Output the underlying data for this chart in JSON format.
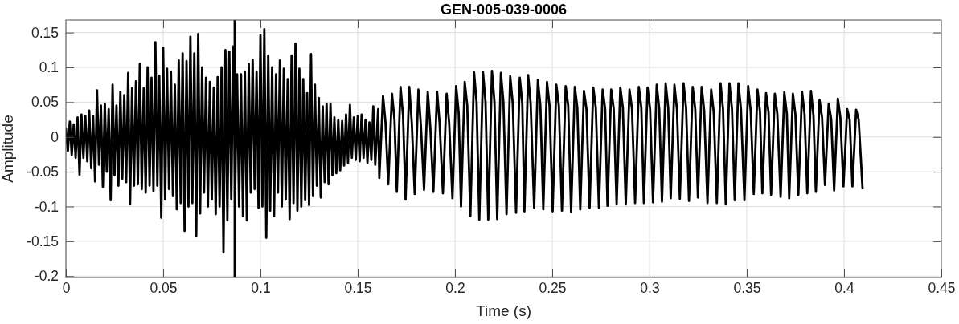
{
  "chart_data": {
    "type": "line",
    "title": "GEN-005-039-0006",
    "xlabel": "Time (s)",
    "ylabel": "Amplitude",
    "x": [
      0,
      0.001,
      0.002,
      0.003,
      0.004,
      0.005,
      0.006,
      0.007,
      0.008,
      0.009,
      0.01,
      0.011,
      0.012,
      0.013,
      0.014,
      0.015,
      0.016,
      0.017,
      0.018,
      0.019,
      0.02,
      0.021,
      0.022,
      0.023,
      0.024,
      0.025,
      0.026,
      0.027,
      0.028,
      0.029,
      0.03,
      0.031,
      0.032,
      0.033,
      0.034,
      0.035,
      0.036,
      0.037,
      0.038,
      0.039,
      0.04,
      0.041,
      0.042,
      0.043,
      0.044,
      0.045,
      0.046,
      0.047,
      0.048,
      0.049,
      0.05,
      0.051,
      0.052,
      0.053,
      0.054,
      0.055,
      0.056,
      0.057,
      0.058,
      0.059,
      0.06,
      0.061,
      0.062,
      0.063,
      0.064,
      0.065,
      0.066,
      0.067,
      0.068,
      0.069,
      0.07,
      0.071,
      0.072,
      0.073,
      0.074,
      0.075,
      0.076,
      0.077,
      0.078,
      0.079,
      0.08,
      0.081,
      0.082,
      0.083,
      0.084,
      0.085,
      0.086,
      0.087,
      0.088,
      0.089,
      0.09,
      0.091,
      0.092,
      0.093,
      0.094,
      0.095,
      0.096,
      0.097,
      0.098,
      0.099,
      0.1,
      0.101,
      0.102,
      0.103,
      0.104,
      0.105,
      0.106,
      0.107,
      0.108,
      0.109,
      0.11,
      0.111,
      0.112,
      0.113,
      0.114,
      0.115,
      0.116,
      0.117,
      0.118,
      0.119,
      0.12,
      0.121,
      0.122,
      0.123,
      0.124,
      0.125,
      0.126,
      0.127,
      0.128,
      0.129,
      0.13,
      0.131,
      0.132,
      0.133,
      0.134,
      0.135,
      0.136,
      0.137,
      0.138,
      0.139,
      0.14,
      0.141,
      0.142,
      0.143,
      0.144,
      0.145,
      0.146,
      0.147,
      0.148,
      0.149,
      0.15,
      0.151,
      0.152,
      0.153,
      0.154,
      0.155,
      0.156,
      0.157,
      0.158,
      0.159,
      0.1605,
      0.1611,
      0.163,
      0.1643,
      0.1657,
      0.1676,
      0.1689,
      0.1701,
      0.172,
      0.1733,
      0.1746,
      0.1765,
      0.1778,
      0.1793,
      0.1812,
      0.1825,
      0.1841,
      0.186,
      0.1873,
      0.1889,
      0.1908,
      0.1921,
      0.1938,
      0.1957,
      0.197,
      0.1987,
      0.2006,
      0.2019,
      0.2031,
      0.205,
      0.2063,
      0.2079,
      0.2098,
      0.2111,
      0.2125,
      0.2144,
      0.2157,
      0.2171,
      0.219,
      0.2203,
      0.2217,
      0.2236,
      0.2249,
      0.2265,
      0.2284,
      0.2297,
      0.2314,
      0.2333,
      0.2346,
      0.2357,
      0.2376,
      0.2389,
      0.2407,
      0.2426,
      0.2439,
      0.2454,
      0.2473,
      0.2486,
      0.2502,
      0.2521,
      0.2534,
      0.255,
      0.2569,
      0.2582,
      0.2597,
      0.2616,
      0.2629,
      0.2644,
      0.2663,
      0.2676,
      0.2692,
      0.2711,
      0.2724,
      0.274,
      0.2759,
      0.2772,
      0.2784,
      0.2803,
      0.2816,
      0.2831,
      0.285,
      0.2863,
      0.2878,
      0.2897,
      0.291,
      0.2926,
      0.2945,
      0.2958,
      0.2971,
      0.299,
      0.3003,
      0.3018,
      0.3037,
      0.305,
      0.3064,
      0.3083,
      0.3096,
      0.3109,
      0.3128,
      0.3141,
      0.3156,
      0.3175,
      0.3188,
      0.3203,
      0.3222,
      0.3235,
      0.3249,
      0.3268,
      0.3281,
      0.3298,
      0.3317,
      0.333,
      0.3346,
      0.3365,
      0.3378,
      0.3392,
      0.3411,
      0.3424,
      0.3438,
      0.3457,
      0.347,
      0.3488,
      0.3507,
      0.352,
      0.3536,
      0.3555,
      0.3568,
      0.358,
      0.3599,
      0.3612,
      0.3625,
      0.3644,
      0.3657,
      0.3674,
      0.3693,
      0.3706,
      0.3718,
      0.3737,
      0.375,
      0.3765,
      0.3784,
      0.3797,
      0.3811,
      0.383,
      0.3843,
      0.3855,
      0.3874,
      0.3887,
      0.3902,
      0.3921,
      0.3934,
      0.3949,
      0.3968,
      0.3981,
      0.3997,
      0.4016,
      0.4029,
      0.4043,
      0.4062,
      0.4075,
      0.4095
    ],
    "series": [
      {
        "color": "#000000",
        "values": [
          0.012,
          -0.02,
          0.022,
          -0.026,
          0.018,
          -0.03,
          0.028,
          -0.054,
          0.032,
          -0.03,
          0.03,
          -0.035,
          0.038,
          -0.045,
          0.03,
          -0.064,
          0.067,
          -0.04,
          0.045,
          -0.072,
          0.048,
          -0.05,
          0.04,
          -0.091,
          0.075,
          -0.055,
          0.045,
          -0.07,
          0.065,
          -0.06,
          0.06,
          -0.065,
          0.092,
          -0.097,
          0.07,
          -0.07,
          0.08,
          -0.068,
          0.105,
          -0.075,
          0.07,
          -0.08,
          0.1,
          -0.07,
          0.085,
          -0.078,
          0.136,
          -0.07,
          0.088,
          -0.116,
          0.128,
          -0.09,
          0.098,
          -0.075,
          0.094,
          -0.085,
          0.075,
          -0.104,
          0.11,
          -0.095,
          0.12,
          -0.135,
          0.109,
          -0.1,
          0.144,
          -0.095,
          0.12,
          -0.143,
          0.148,
          -0.11,
          0.1,
          -0.08,
          0.085,
          -0.1,
          0.079,
          -0.09,
          0.071,
          -0.111,
          0.086,
          -0.1,
          0.1,
          -0.166,
          0.125,
          -0.12,
          0.123,
          -0.09,
          0.13,
          -0.075,
          0.09,
          -0.1,
          0.09,
          -0.114,
          0.094,
          -0.12,
          0.105,
          -0.08,
          0.111,
          -0.075,
          0.094,
          -0.102,
          0.146,
          -0.1,
          0.155,
          -0.145,
          0.117,
          -0.106,
          0.1,
          -0.114,
          0.09,
          -0.08,
          0.11,
          -0.1,
          0.098,
          -0.09,
          0.083,
          -0.118,
          0.117,
          -0.095,
          0.134,
          -0.106,
          0.098,
          -0.1,
          0.083,
          -0.091,
          0.063,
          -0.098,
          0.119,
          -0.085,
          0.075,
          -0.07,
          0.056,
          -0.087,
          0.044,
          -0.065,
          0.048,
          -0.068,
          0.048,
          -0.055,
          0.028,
          -0.052,
          0.025,
          -0.048,
          0.023,
          -0.041,
          0.032,
          -0.037,
          0.046,
          -0.03,
          0.028,
          -0.033,
          0.03,
          -0.035,
          0.032,
          -0.03,
          0.025,
          -0.037,
          0.021,
          -0.033,
          0.044,
          -0.04,
          0.04,
          -0.059,
          0.059,
          0.02,
          -0.068,
          0.062,
          0.025,
          -0.079,
          0.072,
          0.03,
          -0.09,
          0.072,
          0.02,
          -0.082,
          0.068,
          0.015,
          -0.076,
          0.065,
          0.015,
          -0.079,
          0.065,
          0.02,
          -0.081,
          0.062,
          0.02,
          -0.088,
          0.073,
          0.035,
          -0.1,
          0.079,
          0.045,
          -0.114,
          0.093,
          0.05,
          -0.119,
          0.093,
          0.05,
          -0.119,
          0.095,
          0.05,
          -0.118,
          0.092,
          0.05,
          -0.111,
          0.087,
          0.048,
          -0.109,
          0.085,
          0.048,
          -0.107,
          0.089,
          0.048,
          -0.102,
          0.082,
          0.045,
          -0.104,
          0.079,
          0.045,
          -0.107,
          0.075,
          0.045,
          -0.106,
          0.073,
          0.045,
          -0.108,
          0.072,
          0.042,
          -0.104,
          0.066,
          0.04,
          -0.102,
          0.071,
          0.042,
          -0.102,
          0.068,
          0.04,
          -0.099,
          0.068,
          0.04,
          -0.097,
          0.071,
          0.042,
          -0.097,
          0.068,
          0.04,
          -0.095,
          0.072,
          0.042,
          -0.095,
          0.071,
          0.04,
          -0.094,
          0.075,
          0.04,
          -0.093,
          0.077,
          0.042,
          -0.088,
          0.075,
          0.04,
          -0.089,
          0.077,
          0.042,
          -0.092,
          0.072,
          0.04,
          -0.087,
          0.072,
          0.038,
          -0.095,
          0.068,
          0.036,
          -0.095,
          0.077,
          0.04,
          -0.097,
          0.077,
          0.04,
          -0.091,
          0.077,
          0.04,
          -0.091,
          0.073,
          0.038,
          -0.082,
          0.068,
          0.036,
          -0.081,
          0.063,
          0.035,
          -0.083,
          0.062,
          0.033,
          -0.086,
          0.064,
          0.033,
          -0.088,
          0.062,
          0.032,
          -0.084,
          0.065,
          0.033,
          -0.081,
          0.066,
          0.03,
          -0.079,
          0.053,
          0.028,
          -0.069,
          0.048,
          0.025,
          -0.077,
          0.055,
          0.028,
          -0.071,
          0.04,
          0.025,
          -0.071,
          0.039,
          0.025,
          -0.074
        ]
      }
    ],
    "xlim": [
      0,
      0.45
    ],
    "ylim": [
      -0.202,
      0.168
    ],
    "xticks": [
      0,
      0.05,
      0.1,
      0.15,
      0.2,
      0.25,
      0.3,
      0.35,
      0.4,
      0.45
    ],
    "yticks": [
      -0.2,
      -0.15,
      -0.1,
      -0.05,
      0,
      0.05,
      0.1,
      0.15
    ],
    "grid": true,
    "ref_lines": [
      {
        "axis": "x",
        "value": 0.0867,
        "color": "#000000"
      }
    ]
  }
}
